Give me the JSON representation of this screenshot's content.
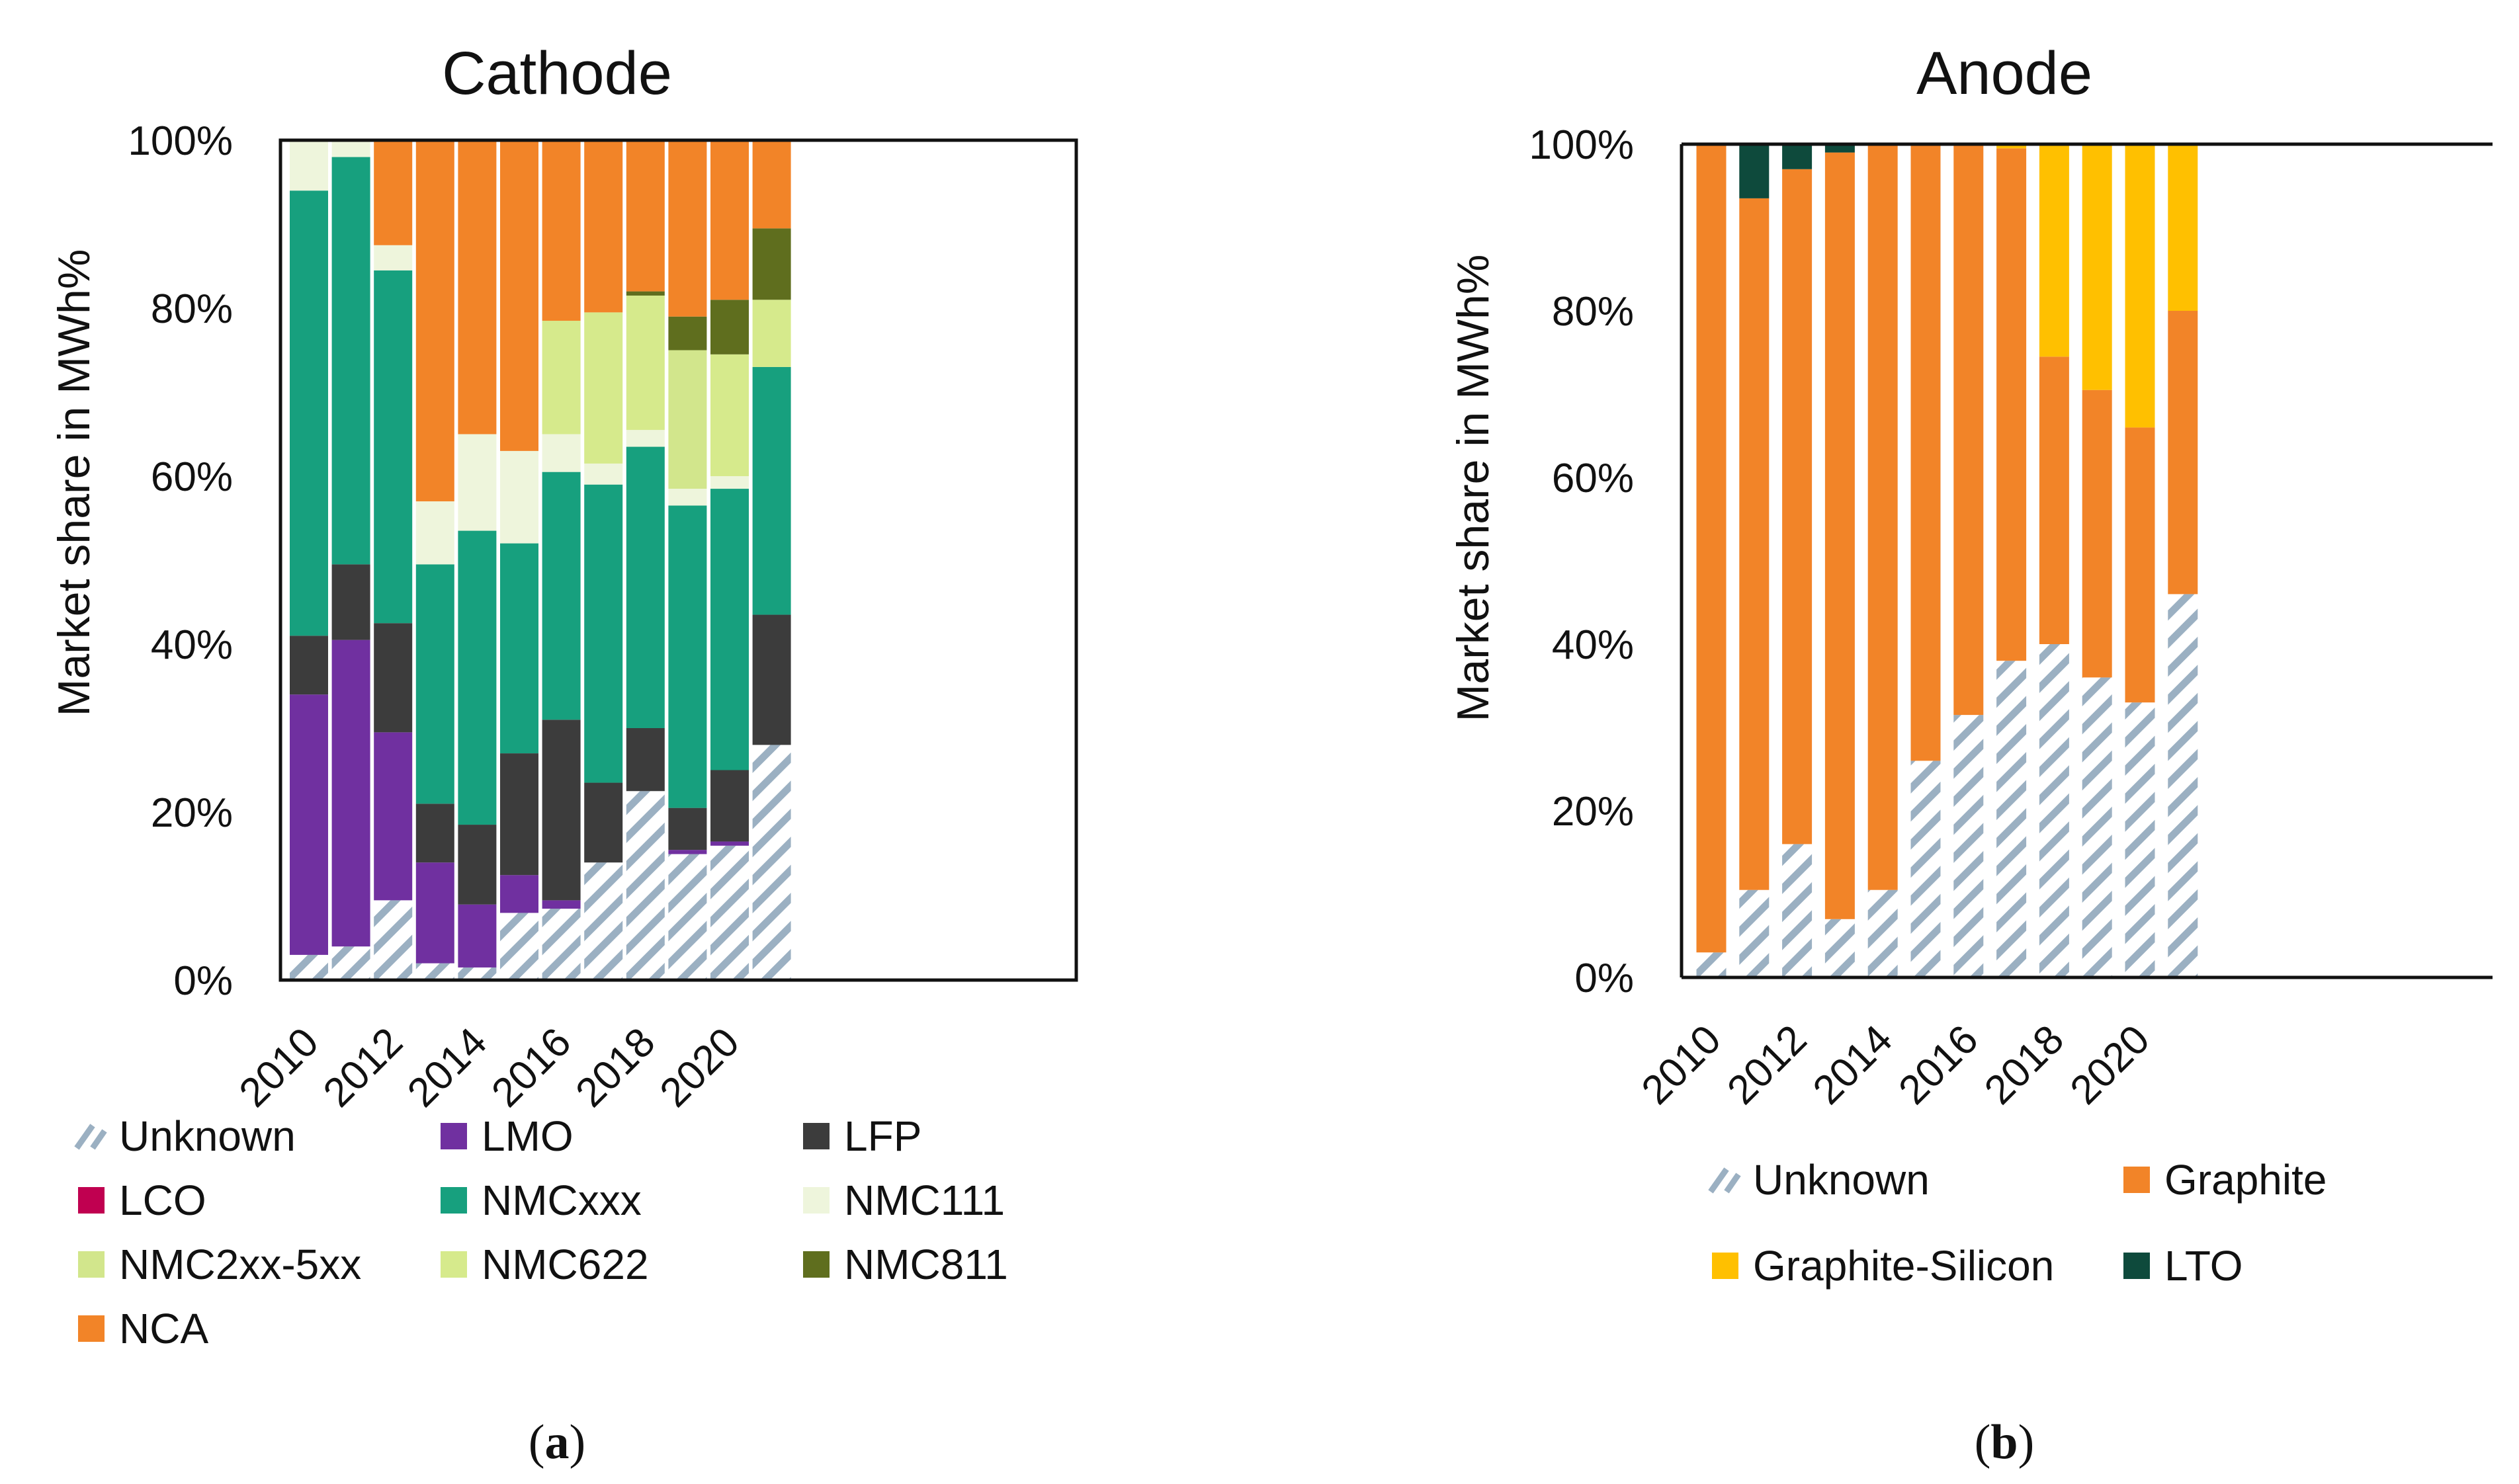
{
  "colors": {
    "Unknown_fg": "#9bb0c2",
    "LMO": "#7030a0",
    "LFP": "#3c3c3c",
    "LCO": "#c00050",
    "NMCxxx": "#17a07e",
    "NMC111": "#eef5dc",
    "NMC2xx-5xx": "#d2e68c",
    "NMC622": "#d6ea8c",
    "NMC811": "#5f6e1e",
    "NCA": "#f28428",
    "Graphite": "#f28428",
    "Graphite-Silicon": "#ffc000",
    "LTO": "#0e4a3c"
  },
  "chart_data": [
    {
      "type": "bar",
      "stacked": true,
      "title": "Cathode",
      "ylabel": "Market share in MWh%",
      "caption_letter": "a",
      "ylim": [
        0,
        100
      ],
      "yticks": [
        "0%",
        "20%",
        "40%",
        "60%",
        "80%",
        "100%"
      ],
      "x_tick_labels": [
        "2010",
        "2012",
        "2014",
        "2016",
        "2018",
        "2020"
      ],
      "categories": [
        "2010",
        "2011",
        "2012",
        "2013",
        "2014",
        "2015",
        "2016",
        "2017",
        "2018",
        "2019",
        "2020",
        "2021"
      ],
      "legend": [
        "Unknown",
        "LMO",
        "LFP",
        "LCO",
        "NMCxxx",
        "NMC111",
        "NMC2xx-5xx",
        "NMC622",
        "NMC811",
        "NCA"
      ],
      "series": [
        {
          "name": "Unknown",
          "values": [
            3,
            4,
            9.5,
            2,
            1.5,
            8,
            8.5,
            14,
            22.5,
            15,
            16,
            28
          ]
        },
        {
          "name": "LMO",
          "values": [
            31,
            36.5,
            20,
            12,
            7.5,
            4.5,
            1,
            0,
            0,
            0.5,
            0.5,
            0
          ]
        },
        {
          "name": "LFP",
          "values": [
            7,
            9,
            13,
            7,
            9.5,
            14.5,
            21.5,
            9.5,
            7.5,
            5,
            8.5,
            15.5
          ]
        },
        {
          "name": "LCO",
          "values": [
            0,
            0,
            0,
            0,
            0,
            0,
            0,
            0,
            0,
            0,
            0,
            0
          ]
        },
        {
          "name": "NMCxxx",
          "values": [
            53,
            48.5,
            42,
            28.5,
            35,
            25,
            29.5,
            35.5,
            33.5,
            36,
            33.5,
            29.5
          ]
        },
        {
          "name": "NMC111",
          "values": [
            6,
            2,
            3,
            7.5,
            11.5,
            11,
            4.5,
            2.5,
            2,
            2,
            1.5,
            0
          ]
        },
        {
          "name": "NMC2xx-5xx",
          "values": [
            0,
            0,
            0,
            0,
            0,
            0,
            0,
            0,
            0,
            16.5,
            0,
            0
          ]
        },
        {
          "name": "NMC622",
          "values": [
            0,
            0,
            0,
            0,
            0,
            0,
            13.5,
            18,
            16,
            0,
            14.5,
            8
          ]
        },
        {
          "name": "NMC811",
          "values": [
            0,
            0,
            0,
            0,
            0,
            0,
            0,
            0,
            0.5,
            4,
            6.5,
            8.5
          ]
        },
        {
          "name": "NCA",
          "values": [
            0,
            0,
            12.5,
            43,
            35,
            37,
            21.5,
            20.5,
            18,
            21,
            19,
            10.5
          ]
        }
      ]
    },
    {
      "type": "bar",
      "stacked": true,
      "title": "Anode",
      "ylabel": "Market share in MWh%",
      "caption_letter": "b",
      "ylim": [
        0,
        100
      ],
      "yticks": [
        "0%",
        "20%",
        "40%",
        "60%",
        "80%",
        "100%"
      ],
      "x_tick_labels": [
        "2010",
        "2012",
        "2014",
        "2016",
        "2018",
        "2020"
      ],
      "categories": [
        "2010",
        "2011",
        "2012",
        "2013",
        "2014",
        "2015",
        "2016",
        "2017",
        "2018",
        "2019",
        "2020",
        "2021"
      ],
      "legend": [
        "Unknown",
        "Graphite",
        "Graphite-Silicon",
        "LTO"
      ],
      "series": [
        {
          "name": "Unknown",
          "values": [
            3,
            10.5,
            16,
            7,
            10.5,
            26,
            31.5,
            38,
            40,
            36,
            33,
            46
          ]
        },
        {
          "name": "Graphite",
          "values": [
            97,
            83,
            81,
            92,
            89.5,
            74,
            68.5,
            61.5,
            34.5,
            34.5,
            33,
            34
          ]
        },
        {
          "name": "Graphite-Silicon",
          "values": [
            0,
            0,
            0,
            0,
            0,
            0,
            0,
            0.5,
            25.5,
            29.5,
            34,
            20
          ]
        },
        {
          "name": "LTO",
          "values": [
            0,
            6.5,
            3,
            1,
            0,
            0,
            0,
            0,
            0,
            0,
            0,
            0
          ]
        }
      ]
    }
  ]
}
